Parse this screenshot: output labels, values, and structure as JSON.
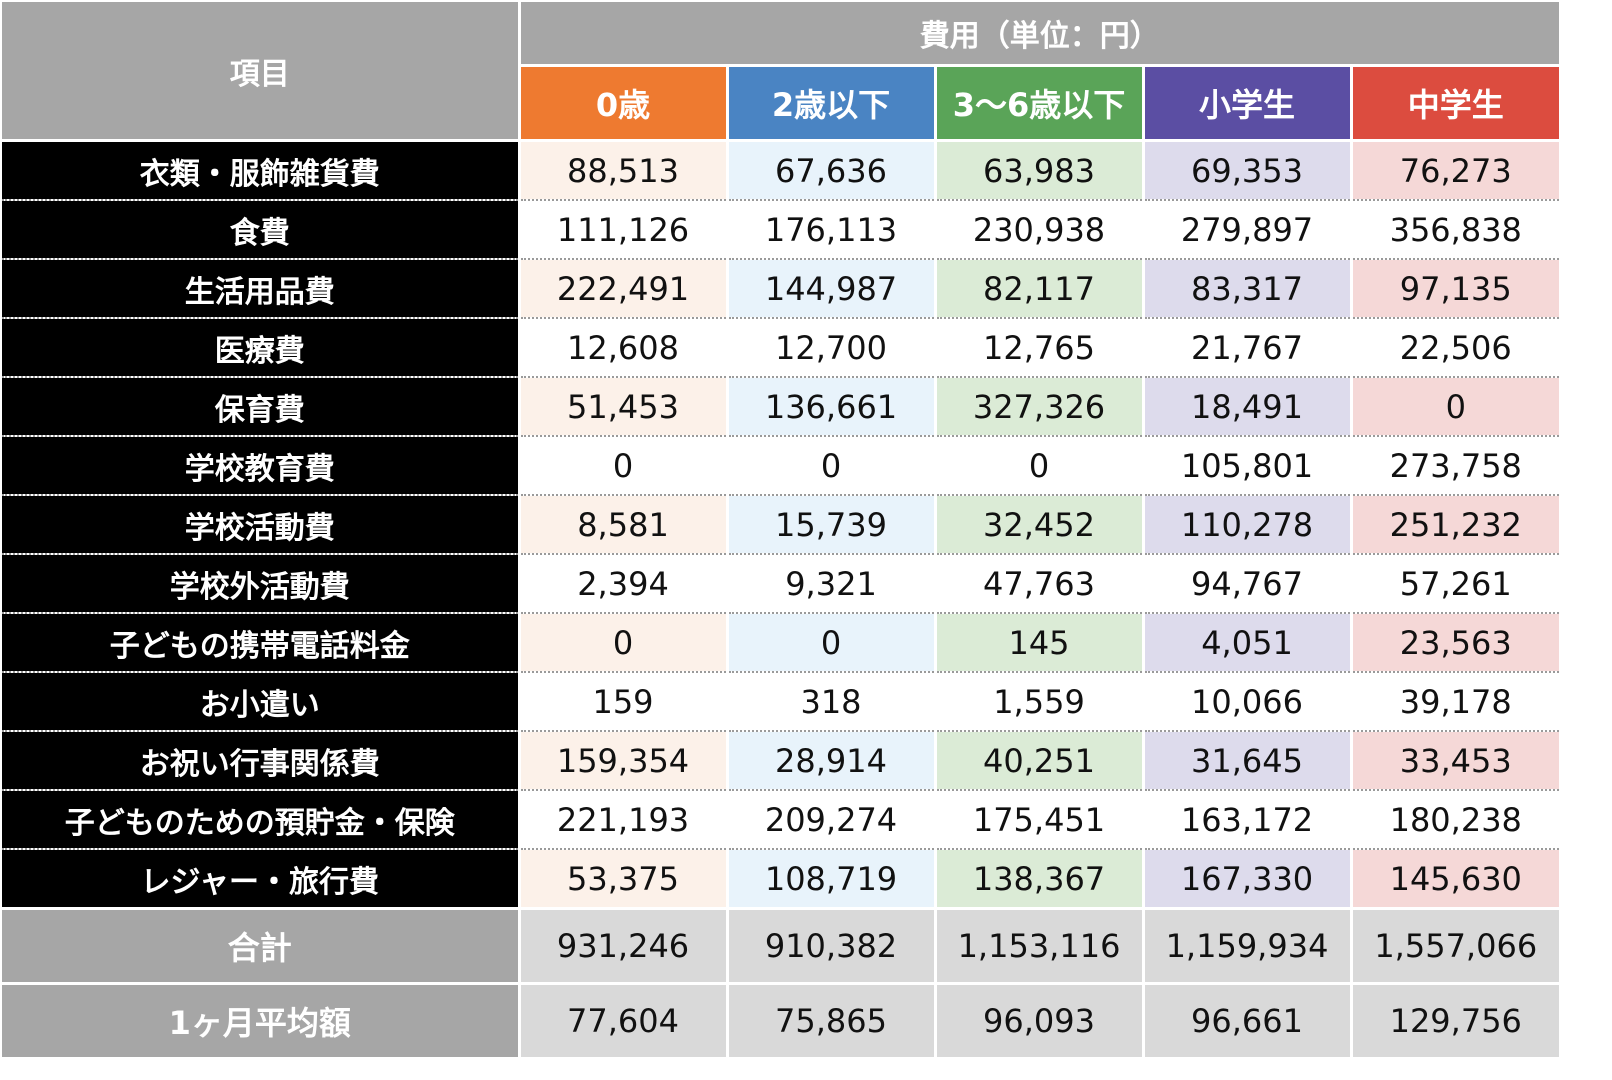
{
  "table": {
    "item_header": "項目",
    "cost_header": "費用（単位：円）",
    "columns": [
      {
        "label": "0歳",
        "header_color": "#ee7a30",
        "tint": "#fcf1e9"
      },
      {
        "label": "2歳以下",
        "header_color": "#4a84c3",
        "tint": "#e8f3fb"
      },
      {
        "label": "3〜6歳以下",
        "header_color": "#5aa458",
        "tint": "#dbebd6"
      },
      {
        "label": "小学生",
        "header_color": "#5b4ea3",
        "tint": "#dddbec"
      },
      {
        "label": "中学生",
        "header_color": "#dc4c3f",
        "tint": "#f5d8d7"
      }
    ],
    "rows": [
      {
        "label": "衣類・服飾雑貨費",
        "values": [
          "88,513",
          "67,636",
          "63,983",
          "69,353",
          "76,273"
        ]
      },
      {
        "label": "食費",
        "values": [
          "111,126",
          "176,113",
          "230,938",
          "279,897",
          "356,838"
        ]
      },
      {
        "label": "生活用品費",
        "values": [
          "222,491",
          "144,987",
          "82,117",
          "83,317",
          "97,135"
        ]
      },
      {
        "label": "医療費",
        "values": [
          "12,608",
          "12,700",
          "12,765",
          "21,767",
          "22,506"
        ]
      },
      {
        "label": "保育費",
        "values": [
          "51,453",
          "136,661",
          "327,326",
          "18,491",
          "0"
        ]
      },
      {
        "label": "学校教育費",
        "values": [
          "0",
          "0",
          "0",
          "105,801",
          "273,758"
        ]
      },
      {
        "label": "学校活動費",
        "values": [
          "8,581",
          "15,739",
          "32,452",
          "110,278",
          "251,232"
        ]
      },
      {
        "label": "学校外活動費",
        "values": [
          "2,394",
          "9,321",
          "47,763",
          "94,767",
          "57,261"
        ]
      },
      {
        "label": "子どもの携帯電話料金",
        "values": [
          "0",
          "0",
          "145",
          "4,051",
          "23,563"
        ]
      },
      {
        "label": "お小遣い",
        "values": [
          "159",
          "318",
          "1,559",
          "10,066",
          "39,178"
        ]
      },
      {
        "label": "お祝い行事関係費",
        "values": [
          "159,354",
          "28,914",
          "40,251",
          "31,645",
          "33,453"
        ]
      },
      {
        "label": "子どものための預貯金・保険",
        "values": [
          "221,193",
          "209,274",
          "175,451",
          "163,172",
          "180,238"
        ]
      },
      {
        "label": "レジャー・旅行費",
        "values": [
          "53,375",
          "108,719",
          "138,367",
          "167,330",
          "145,630"
        ]
      }
    ],
    "totals": [
      {
        "label": "合計",
        "values": [
          "931,246",
          "910,382",
          "1,153,116",
          "1,159,934",
          "1,557,066"
        ]
      },
      {
        "label": "1ヶ月平均額",
        "values": [
          "77,604",
          "75,865",
          "96,093",
          "96,661",
          "129,756"
        ]
      }
    ]
  }
}
